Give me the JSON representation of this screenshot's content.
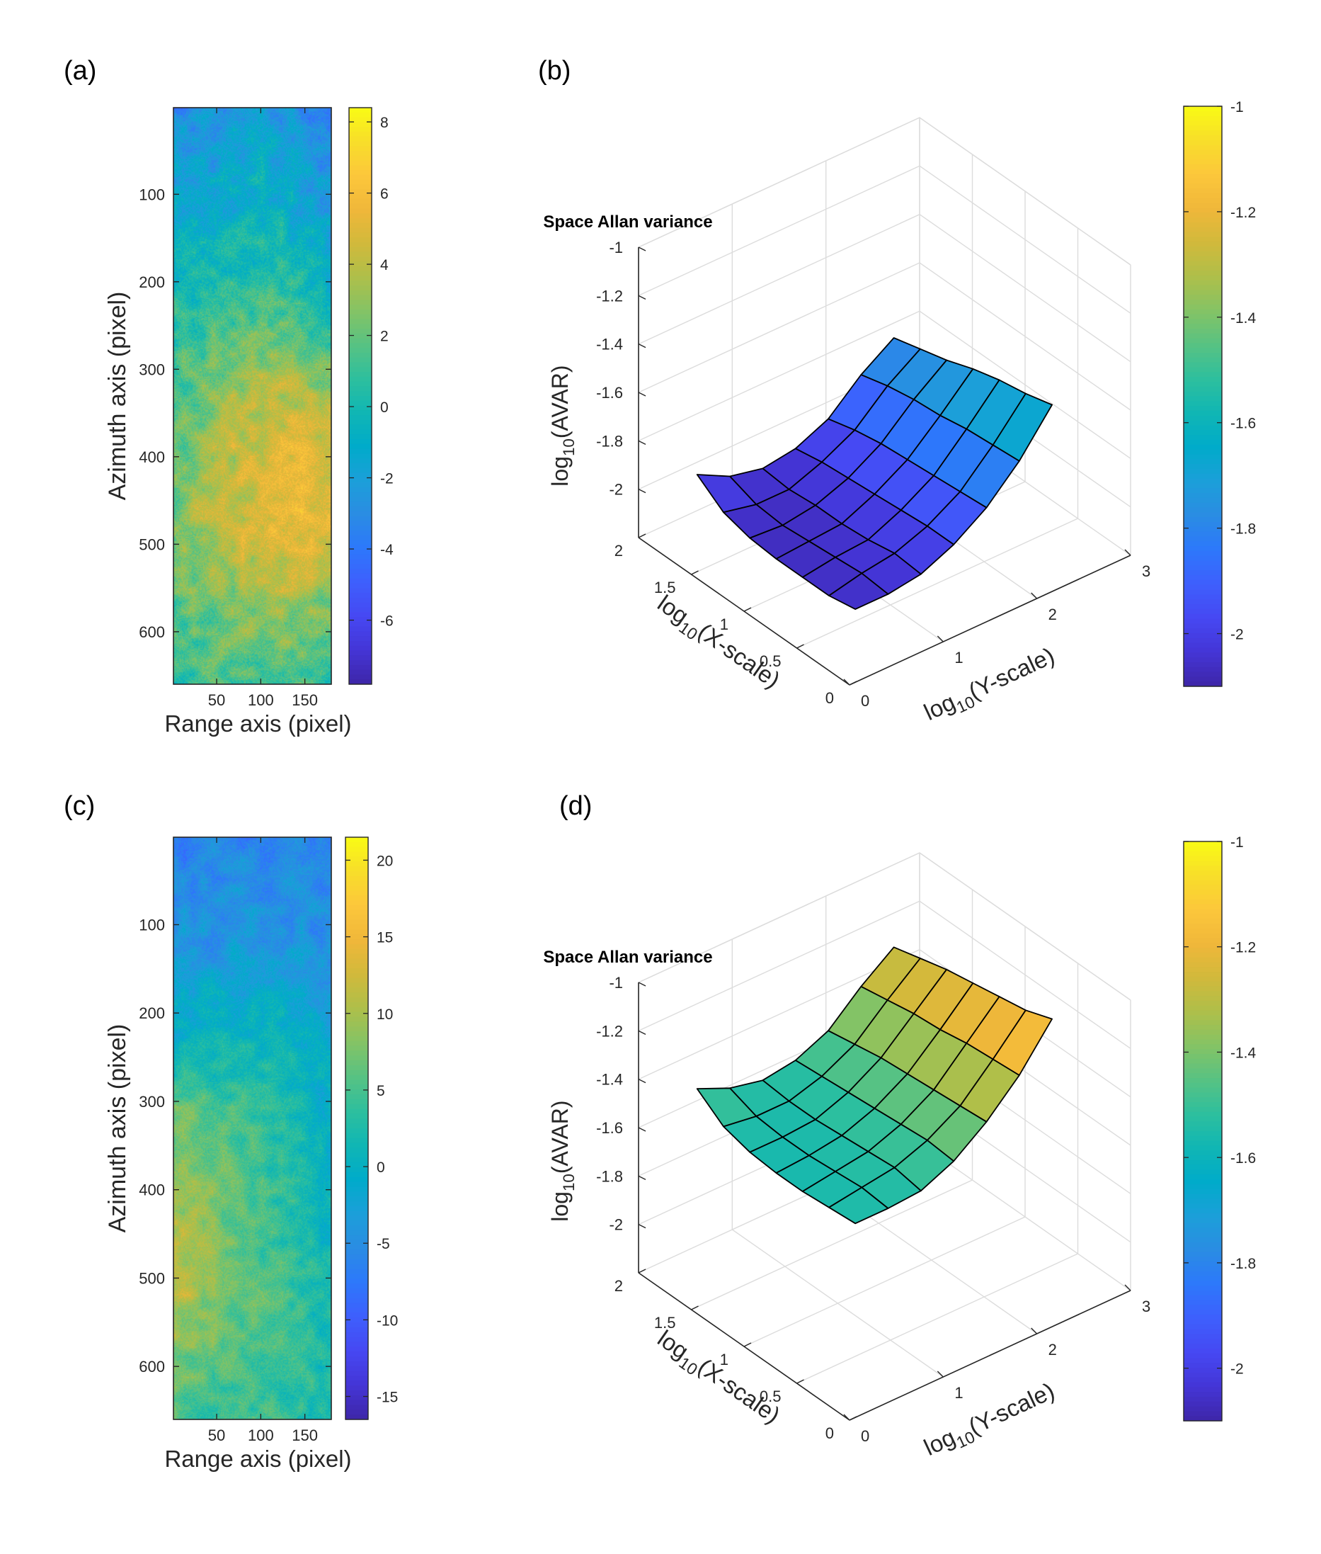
{
  "figure": {
    "colors": {
      "axis": "#262626",
      "grid": "#dcdcdc",
      "text": "#262626",
      "edge": "#000000"
    },
    "colormap": [
      "#3e26a8",
      "#4435d6",
      "#4648f2",
      "#3e5ffd",
      "#2d78fb",
      "#2a8ce3",
      "#1c9fd9",
      "#00abca",
      "#10b6b4",
      "#2dbf9e",
      "#57c283",
      "#84c365",
      "#aebf4a",
      "#d1b93b",
      "#f0b73a",
      "#fcc73b",
      "#f8de2a",
      "#f9fb15"
    ]
  },
  "chart_data": [
    {
      "id": "a",
      "panel_label": "(a)",
      "type": "heatmap",
      "title": "",
      "xlabel": "Range axis (pixel)",
      "ylabel": "Azimuth axis (pixel)",
      "xlim": [
        1,
        180
      ],
      "ylim": [
        1,
        660
      ],
      "xticks": [
        50,
        100,
        150
      ],
      "yticks": [
        100,
        200,
        300,
        400,
        500,
        600
      ],
      "clim": [
        -7.8,
        8.4
      ],
      "cticks": [
        8,
        6,
        4,
        2,
        0,
        -2,
        -4,
        -6
      ],
      "seed": 12345,
      "field_profile": [
        {
          "y": 0,
          "values": [
            -3.2,
            -2.8,
            -1.9,
            -2.6,
            -3.6
          ]
        },
        {
          "y": 110,
          "values": [
            -1.0,
            -1.4,
            -0.6,
            -1.1,
            -2.3
          ]
        },
        {
          "y": 220,
          "values": [
            0.2,
            0.6,
            1.0,
            0.9,
            -0.8
          ]
        },
        {
          "y": 330,
          "values": [
            1.3,
            2.8,
            3.6,
            4.2,
            3.2
          ]
        },
        {
          "y": 420,
          "values": [
            2.2,
            3.8,
            4.6,
            5.4,
            4.6
          ]
        },
        {
          "y": 490,
          "values": [
            2.6,
            3.8,
            4.6,
            5.5,
            5.0
          ]
        },
        {
          "y": 560,
          "values": [
            1.6,
            2.6,
            3.2,
            3.6,
            2.6
          ]
        },
        {
          "y": 660,
          "values": [
            0.6,
            1.2,
            1.6,
            1.4,
            0.6
          ]
        }
      ],
      "noise_amplitude": 1.6
    },
    {
      "id": "b",
      "panel_label": "(b)",
      "type": "surface",
      "title": "Space Allan variance",
      "xlabel": "log10(X-scale)",
      "ylabel": "log10(Y-scale)",
      "zlabel": "log10(AVAR)",
      "xlim": [
        0,
        2
      ],
      "ylim": [
        0,
        3
      ],
      "zlim": [
        -2.2,
        -1
      ],
      "xticks": [
        0,
        0.5,
        1,
        1.5,
        2
      ],
      "yticks": [
        0,
        1,
        2,
        3
      ],
      "zticks": [
        -1,
        -1.2,
        -1.4,
        -1.6,
        -1.8,
        -2
      ],
      "clim": [
        -2.1,
        -1
      ],
      "cticks": [
        -1,
        -1.2,
        -1.4,
        -1.6,
        -1.8,
        -2
      ],
      "x": [
        0.3,
        0.55,
        0.8,
        1.05,
        1.3,
        1.55,
        1.8
      ],
      "y": [
        0.4,
        0.75,
        1.1,
        1.45,
        1.8,
        2.15,
        2.5
      ],
      "z": [
        [
          -2.05,
          -2.05,
          -2.03,
          -1.97,
          -1.88,
          -1.75,
          -1.58
        ],
        [
          -2.07,
          -2.04,
          -2.02,
          -1.97,
          -1.89,
          -1.76,
          -1.61
        ],
        [
          -2.07,
          -2.05,
          -2.04,
          -1.98,
          -1.9,
          -1.77,
          -1.63
        ],
        [
          -2.07,
          -2.06,
          -2.05,
          -1.99,
          -1.91,
          -1.79,
          -1.66
        ],
        [
          -2.06,
          -2.07,
          -2.05,
          -2.0,
          -1.92,
          -1.8,
          -1.7
        ],
        [
          -2.03,
          -2.06,
          -2.06,
          -2.01,
          -1.94,
          -1.82,
          -1.73
        ],
        [
          -1.95,
          -2.02,
          -2.05,
          -2.03,
          -1.97,
          -1.85,
          -1.76
        ]
      ]
    },
    {
      "id": "c",
      "panel_label": "(c)",
      "type": "heatmap",
      "title": "",
      "xlabel": "Range axis (pixel)",
      "ylabel": "Azimuth axis (pixel)",
      "xlim": [
        1,
        180
      ],
      "ylim": [
        1,
        660
      ],
      "xticks": [
        50,
        100,
        150
      ],
      "yticks": [
        100,
        200,
        300,
        400,
        500,
        600
      ],
      "clim": [
        -16.5,
        21.5
      ],
      "cticks": [
        20,
        15,
        10,
        5,
        0,
        -5,
        -10,
        -15
      ],
      "seed": 67890,
      "field_profile": [
        {
          "y": 0,
          "values": [
            -6.5,
            -6.0,
            -6.5,
            -5.5,
            -6.5
          ]
        },
        {
          "y": 120,
          "values": [
            -3.5,
            -4.0,
            -3.2,
            -3.8,
            -5.0
          ]
        },
        {
          "y": 230,
          "values": [
            0.2,
            0.5,
            0.8,
            0.2,
            -1.5
          ]
        },
        {
          "y": 320,
          "values": [
            7.0,
            6.0,
            4.5,
            2.0,
            -0.5
          ]
        },
        {
          "y": 430,
          "values": [
            10.0,
            8.0,
            5.0,
            3.0,
            0.5
          ]
        },
        {
          "y": 500,
          "values": [
            12.5,
            8.5,
            6.0,
            4.0,
            1.5
          ]
        },
        {
          "y": 580,
          "values": [
            8.5,
            6.5,
            5.0,
            4.2,
            2.0
          ]
        },
        {
          "y": 660,
          "values": [
            5.0,
            4.5,
            4.0,
            3.5,
            2.0
          ]
        }
      ],
      "noise_amplitude": 3.0
    },
    {
      "id": "d",
      "panel_label": "(d)",
      "type": "surface",
      "title": "Space Allan variance",
      "xlabel": "log10(X-scale)",
      "ylabel": "log10(Y-scale)",
      "zlabel": "log10(AVAR)",
      "xlim": [
        0,
        2
      ],
      "ylim": [
        0,
        3
      ],
      "zlim": [
        -2.2,
        -1
      ],
      "xticks": [
        0,
        0.5,
        1,
        1.5,
        2
      ],
      "yticks": [
        0,
        1,
        2,
        3
      ],
      "zticks": [
        -1,
        -1.2,
        -1.4,
        -1.6,
        -1.8,
        -2
      ],
      "clim": [
        -2.1,
        -1
      ],
      "cticks": [
        -1,
        -1.2,
        -1.4,
        -1.6,
        -1.8,
        -2
      ],
      "x": [
        0.3,
        0.55,
        0.8,
        1.05,
        1.3,
        1.55,
        1.8
      ],
      "y": [
        0.4,
        0.75,
        1.1,
        1.45,
        1.8,
        2.15,
        2.5
      ],
      "z": [
        [
          -1.55,
          -1.55,
          -1.54,
          -1.48,
          -1.38,
          -1.25,
          -1.08
        ],
        [
          -1.56,
          -1.54,
          -1.52,
          -1.47,
          -1.39,
          -1.26,
          -1.12
        ],
        [
          -1.57,
          -1.55,
          -1.53,
          -1.48,
          -1.4,
          -1.27,
          -1.14
        ],
        [
          -1.57,
          -1.56,
          -1.54,
          -1.49,
          -1.41,
          -1.29,
          -1.16
        ],
        [
          -1.56,
          -1.56,
          -1.55,
          -1.5,
          -1.42,
          -1.3,
          -1.18
        ],
        [
          -1.53,
          -1.55,
          -1.55,
          -1.51,
          -1.44,
          -1.32,
          -1.21
        ],
        [
          -1.45,
          -1.51,
          -1.54,
          -1.52,
          -1.46,
          -1.34,
          -1.24
        ]
      ]
    }
  ]
}
